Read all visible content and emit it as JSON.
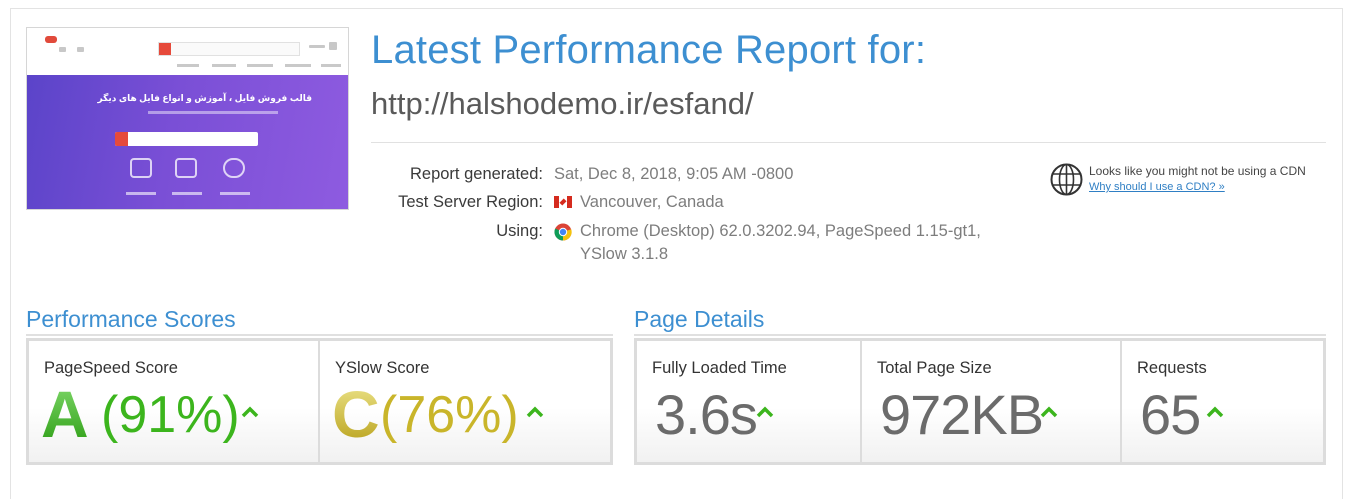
{
  "header": {
    "title": "Latest Performance Report for:",
    "url": "http://halshodemo.ir/esfand/"
  },
  "report": {
    "generated_label": "Report generated:",
    "generated_value": "Sat, Dec 8, 2018, 9:05 AM -0800",
    "region_label": "Test Server Region:",
    "region_value": "Vancouver, Canada",
    "using_label": "Using:",
    "using_value_line1": "Chrome (Desktop) 62.0.3202.94, PageSpeed 1.15-gt1,",
    "using_value_line2": "YSlow 3.1.8"
  },
  "cdn": {
    "message": "Looks like you might not be using a CDN",
    "link": "Why should I use a CDN? »"
  },
  "thumbnail": {
    "hero_title": "قالب فروش فایل ، آموزش و انواع فایل های دیگر"
  },
  "performance_scores": {
    "heading": "Performance Scores",
    "pagespeed": {
      "label": "PageSpeed Score",
      "grade": "A",
      "percent": "(91%)",
      "trend": "up",
      "color": "#3cb51d"
    },
    "yslow": {
      "label": "YSlow Score",
      "grade": "C",
      "percent": "(76%)",
      "trend": "up",
      "color": "#c9b52a"
    }
  },
  "page_details": {
    "heading": "Page Details",
    "fully_loaded": {
      "label": "Fully Loaded Time",
      "value": "3.6s",
      "trend": "up"
    },
    "page_size": {
      "label": "Total Page Size",
      "value": "972KB",
      "trend": "up"
    },
    "requests": {
      "label": "Requests",
      "value": "65",
      "trend": "up"
    }
  },
  "colors": {
    "accent": "#3d8fd1",
    "trend_up": "#3cb51d",
    "grade_a": "#3cb51d",
    "grade_c": "#c9b52a"
  }
}
